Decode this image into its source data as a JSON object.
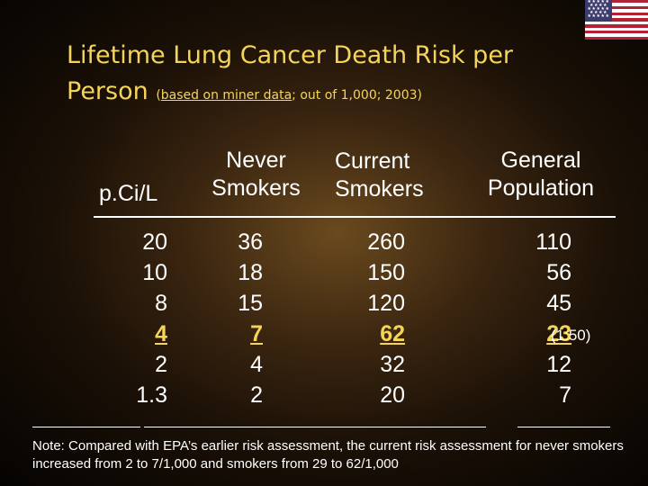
{
  "title": {
    "main": "Lifetime Lung Cancer Death Risk per Person",
    "subtitle_underlined": "based on miner data",
    "subtitle_rest": "; out of 1,000; 2003)",
    "subtitle_open": "("
  },
  "table": {
    "headers": {
      "pci": "p.Ci/L",
      "never_1": "Never",
      "never_2": "Smokers",
      "current_1": "Current",
      "current_2": "Smokers",
      "general_1": "General",
      "general_2": "Population"
    },
    "pci": [
      "20",
      "10",
      "8",
      "4",
      "2",
      "1.3"
    ],
    "never": [
      "36",
      "18",
      "15",
      "7",
      "4",
      "2"
    ],
    "current": [
      "260",
      "150",
      "120",
      "62",
      "32",
      "20"
    ],
    "general": [
      "110",
      "56",
      "45",
      "23",
      "12",
      "7"
    ],
    "highlight_ratio": "(1:50)",
    "highlight_color": "#f4d55a"
  },
  "note": "Note: Compared with EPA’s earlier risk assessment, the current risk assessment for never smokers increased from 2 to 7/1,000 and smokers from 29 to 62/1,000",
  "flag": {
    "icon": "us-flag-icon"
  }
}
